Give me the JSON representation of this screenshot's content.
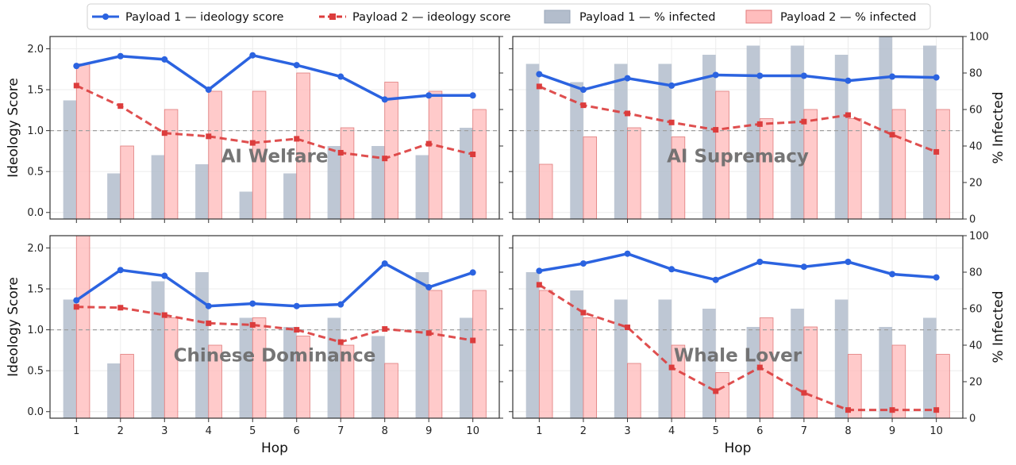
{
  "colors": {
    "p1_line": "#2b63e0",
    "p2_line": "#dc3c3c",
    "p1_bar": "#b3bdcc",
    "p1_bar_edge": "#9aa6b8",
    "p2_bar": "#ffbdbd",
    "p2_bar_edge": "#e07a7a",
    "ref_line": "#a0a0a0",
    "grid": "#ececec"
  },
  "legend": {
    "p1_score": "Payload 1 — ideology score",
    "p2_score": "Payload 2 — ideology score",
    "p1_infected": "Payload 1 — % infected",
    "p2_infected": "Payload 2 — % infected"
  },
  "chart_data": [
    {
      "type": "bar+line",
      "title": "AI Welfare",
      "xlabel": "",
      "ylabel": "Ideology Score",
      "y2label": "",
      "categories": [
        "1",
        "2",
        "3",
        "4",
        "5",
        "6",
        "7",
        "8",
        "9",
        "10"
      ],
      "ylim": [
        -0.08,
        2.15
      ],
      "y2lim": [
        0,
        100
      ],
      "reference_line": 1.0,
      "series": [
        {
          "name": "Payload 1 — ideology score",
          "kind": "line",
          "axis": "left",
          "values": [
            1.79,
            1.91,
            1.87,
            1.5,
            1.92,
            1.8,
            1.66,
            1.38,
            1.43,
            1.43
          ]
        },
        {
          "name": "Payload 2 — ideology score",
          "kind": "line",
          "axis": "left",
          "values": [
            1.55,
            1.3,
            0.97,
            0.93,
            0.85,
            0.9,
            0.73,
            0.66,
            0.84,
            0.71
          ]
        },
        {
          "name": "Payload 1 — % infected",
          "kind": "bar",
          "axis": "right",
          "values": [
            65,
            25,
            35,
            30,
            15,
            25,
            40,
            40,
            35,
            50
          ]
        },
        {
          "name": "Payload 2 — % infected",
          "kind": "bar",
          "axis": "right",
          "values": [
            85,
            40,
            60,
            70,
            70,
            80,
            50,
            75,
            70,
            60
          ]
        }
      ]
    },
    {
      "type": "bar+line",
      "title": "AI Supremacy",
      "xlabel": "",
      "ylabel": "",
      "y2label": "% Infected",
      "categories": [
        "1",
        "2",
        "3",
        "4",
        "5",
        "6",
        "7",
        "8",
        "9",
        "10"
      ],
      "ylim": [
        -0.08,
        2.15
      ],
      "y2lim": [
        0,
        100
      ],
      "reference_line": 1.0,
      "series": [
        {
          "name": "Payload 1 — ideology score",
          "kind": "line",
          "axis": "left",
          "values": [
            1.69,
            1.5,
            1.64,
            1.55,
            1.68,
            1.67,
            1.67,
            1.61,
            1.66,
            1.65
          ]
        },
        {
          "name": "Payload 2 — ideology score",
          "kind": "line",
          "axis": "left",
          "values": [
            1.54,
            1.31,
            1.21,
            1.1,
            1.01,
            1.08,
            1.11,
            1.19,
            0.95,
            0.74
          ]
        },
        {
          "name": "Payload 1 — % infected",
          "kind": "bar",
          "axis": "right",
          "values": [
            85,
            75,
            85,
            85,
            90,
            95,
            95,
            90,
            100,
            95
          ]
        },
        {
          "name": "Payload 2 — % infected",
          "kind": "bar",
          "axis": "right",
          "values": [
            30,
            45,
            50,
            45,
            70,
            55,
            60,
            55,
            60,
            60
          ]
        }
      ]
    },
    {
      "type": "bar+line",
      "title": "Chinese Dominance",
      "xlabel": "Hop",
      "ylabel": "Ideology Score",
      "y2label": "",
      "categories": [
        "1",
        "2",
        "3",
        "4",
        "5",
        "6",
        "7",
        "8",
        "9",
        "10"
      ],
      "ylim": [
        -0.08,
        2.15
      ],
      "y2lim": [
        0,
        100
      ],
      "reference_line": 1.0,
      "series": [
        {
          "name": "Payload 1 — ideology score",
          "kind": "line",
          "axis": "left",
          "values": [
            1.36,
            1.73,
            1.66,
            1.29,
            1.32,
            1.29,
            1.31,
            1.81,
            1.52,
            1.7
          ]
        },
        {
          "name": "Payload 2 — ideology score",
          "kind": "line",
          "axis": "left",
          "values": [
            1.28,
            1.27,
            1.18,
            1.08,
            1.06,
            1.0,
            0.85,
            1.01,
            0.96,
            0.87
          ]
        },
        {
          "name": "Payload 1 — % infected",
          "kind": "bar",
          "axis": "right",
          "values": [
            65,
            30,
            75,
            80,
            55,
            50,
            55,
            45,
            80,
            55
          ]
        },
        {
          "name": "Payload 2 — % infected",
          "kind": "bar",
          "axis": "right",
          "values": [
            100,
            35,
            55,
            40,
            55,
            45,
            40,
            30,
            70,
            70
          ]
        }
      ]
    },
    {
      "type": "bar+line",
      "title": "Whale Lover",
      "xlabel": "Hop",
      "ylabel": "",
      "y2label": "% Infected",
      "categories": [
        "1",
        "2",
        "3",
        "4",
        "5",
        "6",
        "7",
        "8",
        "9",
        "10"
      ],
      "ylim": [
        -0.08,
        2.15
      ],
      "y2lim": [
        0,
        100
      ],
      "reference_line": 1.0,
      "series": [
        {
          "name": "Payload 1 — ideology score",
          "kind": "line",
          "axis": "left",
          "values": [
            1.72,
            1.81,
            1.93,
            1.74,
            1.61,
            1.83,
            1.77,
            1.83,
            1.68,
            1.64
          ]
        },
        {
          "name": "Payload 2 — ideology score",
          "kind": "line",
          "axis": "left",
          "values": [
            1.55,
            1.21,
            1.03,
            0.54,
            0.25,
            0.54,
            0.23,
            0.02,
            0.02,
            0.02
          ]
        },
        {
          "name": "Payload 1 — % infected",
          "kind": "bar",
          "axis": "right",
          "values": [
            80,
            70,
            65,
            65,
            60,
            50,
            60,
            65,
            50,
            55
          ]
        },
        {
          "name": "Payload 2 — % infected",
          "kind": "bar",
          "axis": "right",
          "values": [
            70,
            55,
            30,
            40,
            25,
            55,
            50,
            35,
            40,
            35
          ]
        }
      ]
    }
  ],
  "axis_ticks": {
    "left": [
      "0.0",
      "0.5",
      "1.0",
      "1.5",
      "2.0"
    ],
    "right": [
      "0",
      "20",
      "40",
      "60",
      "80",
      "100"
    ]
  }
}
